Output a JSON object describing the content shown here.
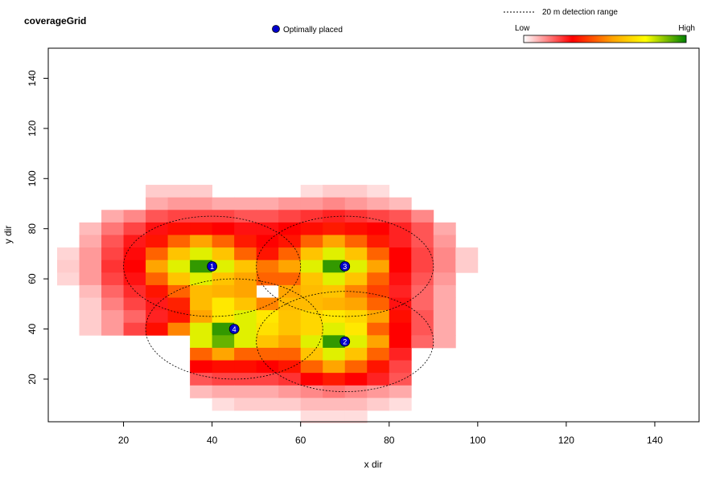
{
  "chart_data": {
    "type": "heatmap",
    "title": "coverageGrid",
    "xlabel": "x dir",
    "ylabel": "y dir",
    "xlim": [
      3,
      150
    ],
    "ylim": [
      3,
      152
    ],
    "xticks": [
      20,
      40,
      60,
      80,
      100,
      120,
      140
    ],
    "yticks": [
      20,
      40,
      60,
      80,
      100,
      120,
      140
    ],
    "cell_size": 5,
    "x_start": 7.5,
    "y_start": 5,
    "grid": false,
    "legend_position": "top",
    "legend": {
      "range_label": "20 m detection range",
      "placed_label": "Optimally placed",
      "scale_low": "Low",
      "scale_high": "High",
      "placed_color": "#0000cc"
    },
    "colors": {
      "scale": [
        "#ffffff",
        "#ff0000",
        "#ffa500",
        "#ffff00",
        "#008000"
      ]
    },
    "detection_range": 20,
    "receivers": [
      {
        "label": "1",
        "x": 40,
        "y": 65
      },
      {
        "label": "2",
        "x": 70,
        "y": 35
      },
      {
        "label": "3",
        "x": 70,
        "y": 65
      },
      {
        "label": "4",
        "x": 45,
        "y": 40
      }
    ],
    "rows": [
      {
        "y": 150,
        "values": [
          0,
          0,
          0,
          0,
          0,
          0,
          0,
          0,
          0,
          0,
          0,
          0,
          0,
          0,
          0,
          0,
          0,
          0,
          0
        ]
      },
      {
        "y": 145,
        "values": [
          0,
          0,
          0,
          0,
          0,
          0,
          0,
          0,
          0,
          0,
          0,
          0,
          0,
          0,
          0,
          0,
          0,
          0,
          0
        ]
      },
      {
        "y": 140,
        "values": [
          0,
          0,
          0,
          0,
          0,
          0,
          0,
          0,
          0,
          0,
          0,
          0,
          0,
          0,
          0,
          0,
          0,
          0,
          0
        ]
      },
      {
        "y": 135,
        "values": [
          0,
          0,
          0,
          0,
          0,
          0,
          0,
          0,
          0,
          0,
          0,
          0,
          0,
          0,
          0,
          0,
          0,
          0,
          0
        ]
      },
      {
        "y": 130,
        "values": [
          0,
          0,
          0,
          0,
          0,
          0,
          0,
          0,
          0,
          0,
          0,
          0,
          0,
          0,
          0,
          0,
          0,
          0,
          0
        ]
      },
      {
        "y": 125,
        "values": [
          0,
          0,
          0,
          0,
          0,
          0,
          0,
          0,
          0,
          0,
          0,
          0,
          0,
          0,
          0,
          0,
          0,
          0,
          0
        ]
      },
      {
        "y": 120,
        "values": [
          0,
          0,
          0,
          0,
          0,
          0,
          0,
          0,
          0,
          0,
          0,
          0,
          0,
          0,
          0,
          0,
          0,
          0,
          0
        ]
      },
      {
        "y": 115,
        "values": [
          0,
          0,
          0,
          0,
          0,
          0,
          0,
          0,
          0,
          0,
          0,
          0,
          0,
          0,
          0,
          0,
          0,
          0,
          0
        ]
      },
      {
        "y": 110,
        "values": [
          0,
          0,
          0,
          0,
          0,
          0,
          0,
          0,
          0,
          0,
          0,
          0,
          0,
          0,
          0,
          0,
          0,
          0,
          0
        ]
      },
      {
        "y": 105,
        "values": [
          0,
          0,
          0,
          0,
          0,
          0,
          0,
          0,
          0,
          0,
          0,
          0,
          0,
          0,
          0,
          0,
          0,
          0,
          0
        ]
      },
      {
        "y": 100,
        "values": [
          0,
          0,
          0,
          0,
          0,
          0,
          0,
          0,
          0,
          0,
          0,
          0,
          0,
          0,
          0,
          0,
          0,
          0,
          0
        ]
      },
      {
        "y": 95,
        "values": [
          0,
          0,
          0,
          0,
          0.06,
          0.06,
          0.06,
          0,
          0,
          0,
          0,
          0.04,
          0.06,
          0.06,
          0.04,
          0,
          0,
          0,
          0
        ]
      },
      {
        "y": 90,
        "values": [
          0,
          0,
          0,
          0,
          0.1,
          0.12,
          0.12,
          0.1,
          0.1,
          0.1,
          0.12,
          0.12,
          0.14,
          0.12,
          0.1,
          0.08,
          0,
          0,
          0
        ]
      },
      {
        "y": 85,
        "values": [
          0,
          0,
          0.1,
          0.14,
          0.2,
          0.22,
          0.22,
          0.22,
          0.2,
          0.2,
          0.22,
          0.24,
          0.26,
          0.24,
          0.22,
          0.2,
          0.14,
          0,
          0
        ]
      },
      {
        "y": 80,
        "values": [
          0,
          0.08,
          0.16,
          0.22,
          0.28,
          0.32,
          0.32,
          0.3,
          0.28,
          0.28,
          0.3,
          0.32,
          0.34,
          0.32,
          0.3,
          0.26,
          0.2,
          0.1,
          0
        ]
      },
      {
        "y": 75,
        "values": [
          0,
          0.1,
          0.2,
          0.27,
          0.33,
          0.45,
          0.55,
          0.45,
          0.34,
          0.3,
          0.33,
          0.45,
          0.55,
          0.45,
          0.34,
          0.26,
          0.2,
          0.12,
          0
        ]
      },
      {
        "y": 70,
        "values": [
          0.05,
          0.12,
          0.22,
          0.29,
          0.45,
          0.62,
          0.78,
          0.62,
          0.45,
          0.33,
          0.45,
          0.62,
          0.78,
          0.62,
          0.45,
          0.3,
          0.22,
          0.14,
          0.06
        ]
      },
      {
        "y": 65,
        "values": [
          0.06,
          0.12,
          0.24,
          0.3,
          0.55,
          0.78,
          0.95,
          0.78,
          0.62,
          0.48,
          0.55,
          0.78,
          0.95,
          0.78,
          0.55,
          0.3,
          0.22,
          0.14,
          0.06
        ]
      },
      {
        "y": 60,
        "values": [
          0.05,
          0.12,
          0.22,
          0.28,
          0.45,
          0.62,
          0.78,
          0.62,
          0.55,
          0.45,
          0.45,
          0.62,
          0.78,
          0.62,
          0.45,
          0.28,
          0.2,
          0.12,
          0
        ]
      },
      {
        "y": 55,
        "values": [
          0,
          0.08,
          0.18,
          0.25,
          0.33,
          0.45,
          0.6,
          0.58,
          0.55,
          0,
          0.55,
          0.6,
          0.62,
          0.5,
          0.4,
          0.26,
          0.18,
          0.1,
          0
        ]
      },
      {
        "y": 50,
        "values": [
          0,
          0.06,
          0.15,
          0.22,
          0.27,
          0.35,
          0.6,
          0.7,
          0.62,
          0.5,
          0.6,
          0.6,
          0.58,
          0.55,
          0.45,
          0.28,
          0.18,
          0.1,
          0
        ]
      },
      {
        "y": 45,
        "values": [
          0,
          0.06,
          0.12,
          0.18,
          0.26,
          0.33,
          0.55,
          0.7,
          0.78,
          0.7,
          0.62,
          0.66,
          0.7,
          0.66,
          0.55,
          0.32,
          0.2,
          0.1,
          0
        ]
      },
      {
        "y": 40,
        "values": [
          0,
          0.06,
          0.12,
          0.22,
          0.32,
          0.5,
          0.78,
          0.95,
          0.78,
          0.68,
          0.62,
          0.66,
          0.78,
          0.7,
          0.45,
          0.3,
          0.2,
          0.1,
          0
        ]
      },
      {
        "y": 35,
        "values": [
          0,
          0,
          0,
          0,
          0,
          0,
          0.78,
          0.9,
          0.78,
          0.62,
          0.55,
          0.78,
          0.95,
          0.78,
          0.55,
          0.3,
          0.18,
          0.1,
          0
        ]
      },
      {
        "y": 30,
        "values": [
          0,
          0,
          0,
          0,
          0,
          0,
          0.45,
          0.55,
          0.45,
          0.45,
          0.45,
          0.62,
          0.78,
          0.62,
          0.45,
          0.26,
          0,
          0,
          0
        ]
      },
      {
        "y": 25,
        "values": [
          0,
          0,
          0,
          0,
          0,
          0,
          0.3,
          0.32,
          0.32,
          0.3,
          0.33,
          0.45,
          0.55,
          0.45,
          0.33,
          0.22,
          0,
          0,
          0
        ]
      },
      {
        "y": 20,
        "values": [
          0,
          0,
          0,
          0,
          0,
          0,
          0.2,
          0.22,
          0.22,
          0.22,
          0.24,
          0.3,
          0.34,
          0.3,
          0.26,
          0.2,
          0,
          0,
          0
        ]
      },
      {
        "y": 15,
        "values": [
          0,
          0,
          0,
          0,
          0,
          0,
          0.08,
          0.1,
          0.1,
          0.1,
          0.12,
          0.14,
          0.16,
          0.14,
          0.12,
          0.1,
          0,
          0,
          0
        ]
      },
      {
        "y": 10,
        "values": [
          0,
          0,
          0,
          0,
          0,
          0,
          0,
          0.04,
          0.06,
          0.06,
          0.06,
          0.08,
          0.08,
          0.08,
          0.06,
          0.04,
          0,
          0,
          0
        ]
      },
      {
        "y": 5,
        "values": [
          0,
          0,
          0,
          0,
          0,
          0,
          0,
          0,
          0,
          0,
          0,
          0.04,
          0.04,
          0.04,
          0,
          0,
          0,
          0,
          0
        ]
      }
    ]
  }
}
